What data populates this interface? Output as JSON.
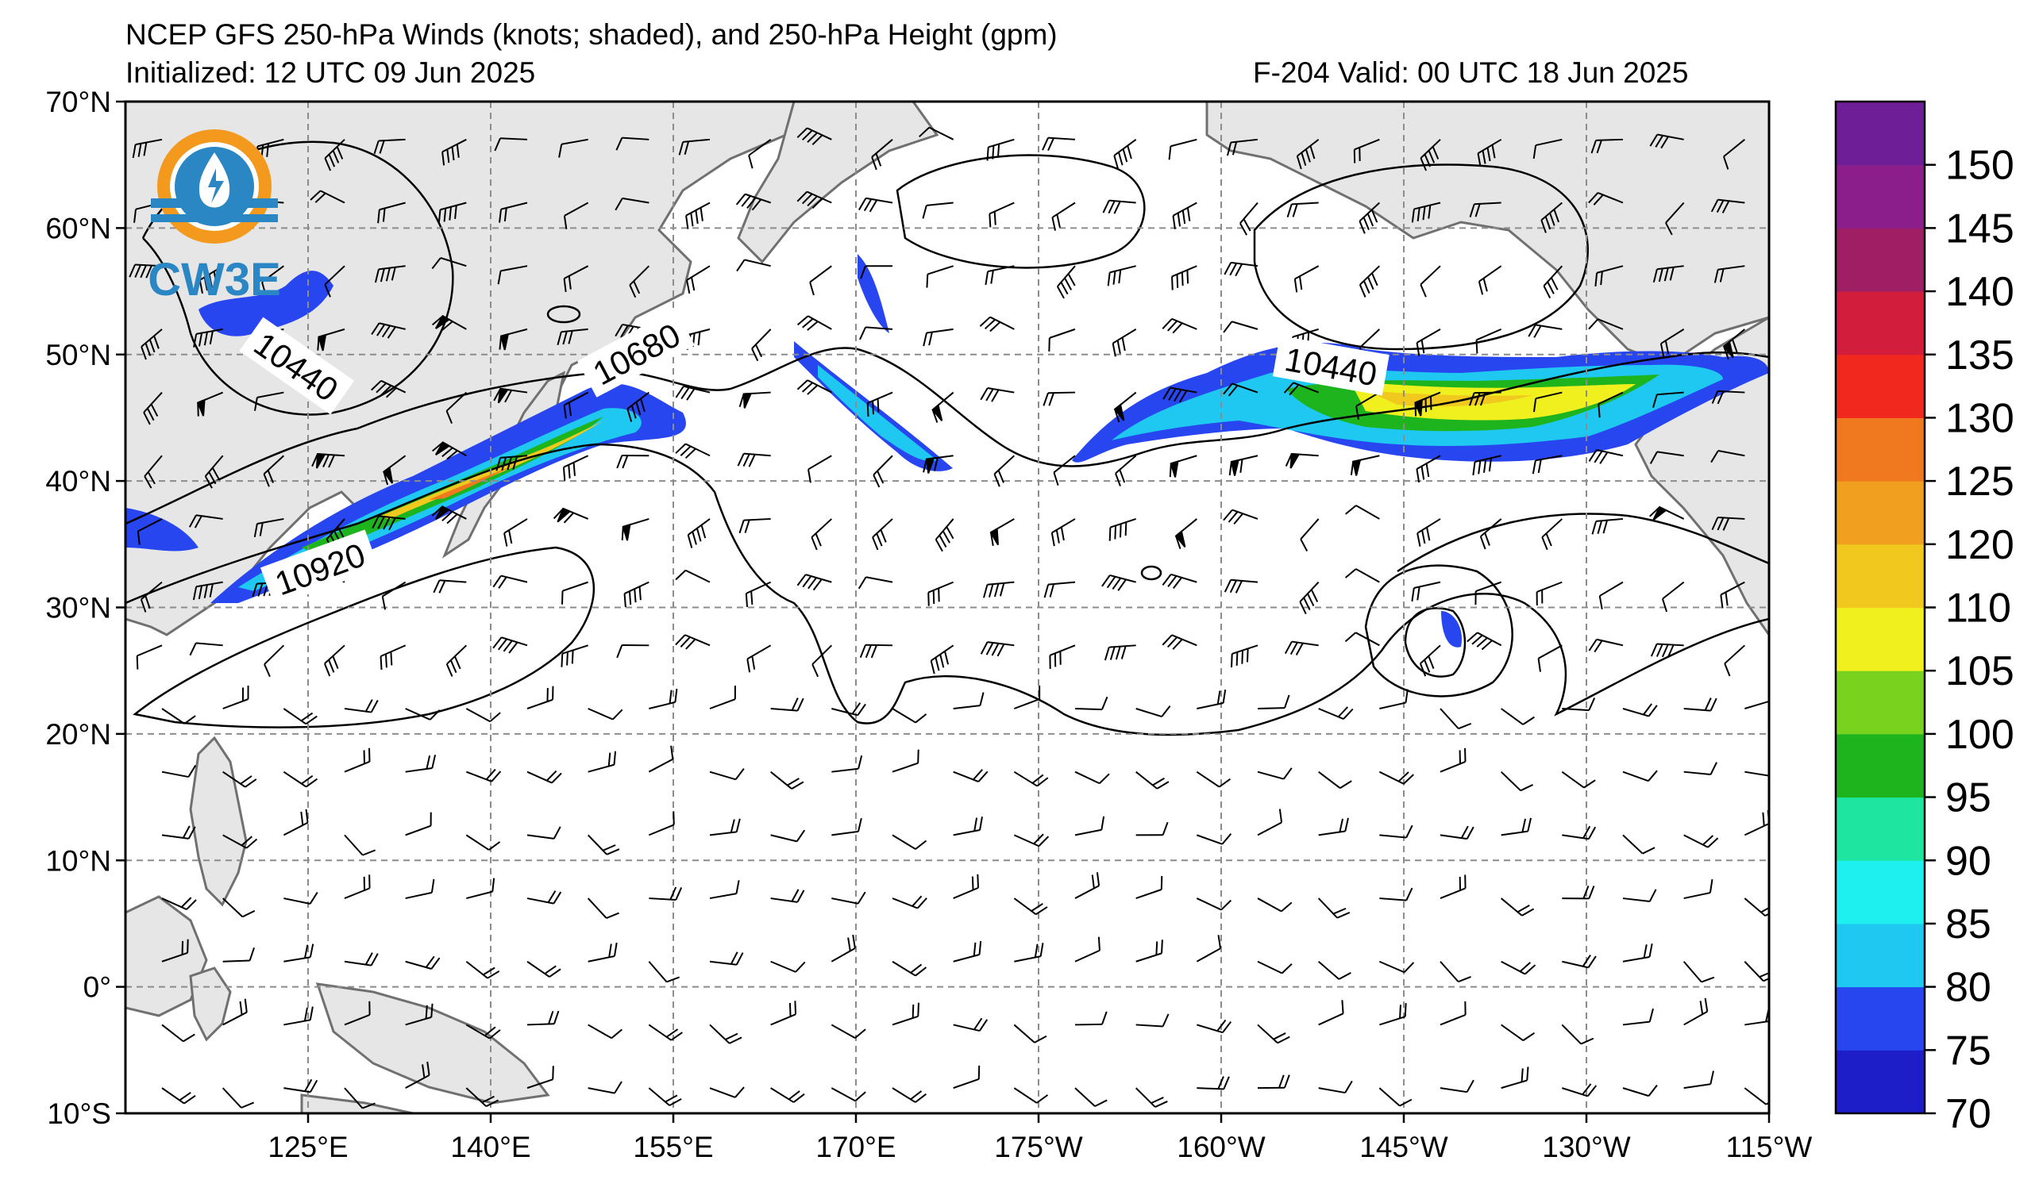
{
  "title": {
    "line1": "NCEP GFS 250-hPa Winds (knots; shaded), and 250-hPa Height (gpm)",
    "line2_left": "Initialized: 12 UTC 09 Jun 2025",
    "line2_right": "F-204  Valid: 00 UTC 18 Jun 2025"
  },
  "logo": {
    "text": "CW3E",
    "icon": "cw3e-logo-icon"
  },
  "map": {
    "lon_range": [
      110,
      245
    ],
    "lat_range": [
      -10,
      70
    ],
    "land_color": "#e6e6e6",
    "coast_color": "#707070",
    "grid": "dashed"
  },
  "axes": {
    "lat_ticks": [
      {
        "lat": 70,
        "label": "70°N"
      },
      {
        "lat": 60,
        "label": "60°N"
      },
      {
        "lat": 50,
        "label": "50°N"
      },
      {
        "lat": 40,
        "label": "40°N"
      },
      {
        "lat": 30,
        "label": "30°N"
      },
      {
        "lat": 20,
        "label": "20°N"
      },
      {
        "lat": 10,
        "label": "10°N"
      },
      {
        "lat": 0,
        "label": "0°"
      },
      {
        "lat": -10,
        "label": "10°S"
      }
    ],
    "lon_ticks": [
      {
        "lon": 125,
        "label": "125°E"
      },
      {
        "lon": 140,
        "label": "140°E"
      },
      {
        "lon": 155,
        "label": "155°E"
      },
      {
        "lon": 170,
        "label": "170°E"
      },
      {
        "lon": 185,
        "label": "175°W"
      },
      {
        "lon": 200,
        "label": "160°W"
      },
      {
        "lon": 215,
        "label": "145°W"
      },
      {
        "lon": 230,
        "label": "130°W"
      },
      {
        "lon": 245,
        "label": "115°W"
      }
    ]
  },
  "colorbar": {
    "units": "knots",
    "levels": [
      70,
      75,
      80,
      85,
      90,
      95,
      100,
      105,
      110,
      120,
      125,
      130,
      135,
      140,
      145,
      150,
      155
    ],
    "labels": [
      "70",
      "75",
      "80",
      "85",
      "90",
      "95",
      "100",
      "105",
      "110",
      "120",
      "125",
      "130",
      "135",
      "140",
      "145",
      "150"
    ],
    "colors": [
      "#1e1ec8",
      "#2846f0",
      "#1ec8f0",
      "#1ef0f0",
      "#1ee6a0",
      "#1eb41e",
      "#78d21e",
      "#f0f01e",
      "#f0c81e",
      "#f0a01e",
      "#f0781e",
      "#f0281e",
      "#d21e3c",
      "#a01e64",
      "#8c1e8c",
      "#6e1e96"
    ]
  },
  "contour_labels": [
    {
      "text": "10440",
      "lon": 124,
      "lat": 49,
      "angle": 35
    },
    {
      "text": "10680",
      "lon": 152,
      "lat": 50,
      "angle": -28
    },
    {
      "text": "10920",
      "lon": 126,
      "lat": 33,
      "angle": -20
    },
    {
      "text": "10440",
      "lon": 209,
      "lat": 49,
      "angle": 10
    }
  ]
}
